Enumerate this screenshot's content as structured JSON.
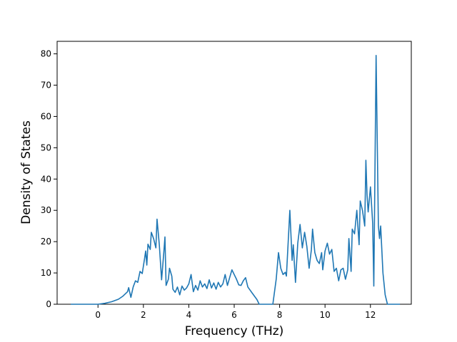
{
  "chart_data": {
    "type": "line",
    "xlabel": "Frequency (THz)",
    "ylabel": "Density of States",
    "xlim": [
      -1.8,
      13.8
    ],
    "ylim": [
      0,
      84
    ],
    "xticks": [
      0,
      2,
      4,
      6,
      8,
      10,
      12
    ],
    "yticks": [
      0,
      10,
      20,
      30,
      40,
      50,
      60,
      70,
      80
    ],
    "grid": false,
    "legend": "none",
    "series": [
      {
        "color": "#1f77b4",
        "points": [
          [
            -1.2,
            0
          ],
          [
            -0.5,
            0
          ],
          [
            0.0,
            0
          ],
          [
            0.3,
            0.3
          ],
          [
            0.6,
            0.8
          ],
          [
            0.9,
            1.6
          ],
          [
            1.1,
            2.6
          ],
          [
            1.3,
            4.0
          ],
          [
            1.35,
            5.3
          ],
          [
            1.45,
            2.2
          ],
          [
            1.55,
            5.5
          ],
          [
            1.65,
            7.5
          ],
          [
            1.75,
            7.0
          ],
          [
            1.85,
            10.5
          ],
          [
            1.95,
            9.8
          ],
          [
            2.05,
            14.5
          ],
          [
            2.1,
            17.0
          ],
          [
            2.15,
            12.5
          ],
          [
            2.2,
            19.2
          ],
          [
            2.3,
            17.5
          ],
          [
            2.35,
            23.0
          ],
          [
            2.45,
            21.0
          ],
          [
            2.55,
            18.0
          ],
          [
            2.6,
            27.2
          ],
          [
            2.7,
            19.0
          ],
          [
            2.8,
            7.8
          ],
          [
            2.9,
            16.5
          ],
          [
            2.95,
            21.5
          ],
          [
            3.0,
            6.0
          ],
          [
            3.1,
            8.0
          ],
          [
            3.15,
            11.5
          ],
          [
            3.25,
            9.0
          ],
          [
            3.3,
            4.8
          ],
          [
            3.4,
            3.8
          ],
          [
            3.5,
            5.5
          ],
          [
            3.6,
            3.0
          ],
          [
            3.7,
            5.8
          ],
          [
            3.8,
            4.5
          ],
          [
            3.9,
            5.2
          ],
          [
            4.0,
            6.5
          ],
          [
            4.1,
            9.5
          ],
          [
            4.2,
            4.0
          ],
          [
            4.3,
            6.0
          ],
          [
            4.4,
            4.5
          ],
          [
            4.5,
            7.5
          ],
          [
            4.6,
            5.5
          ],
          [
            4.7,
            6.5
          ],
          [
            4.8,
            5.0
          ],
          [
            4.9,
            7.8
          ],
          [
            5.0,
            5.2
          ],
          [
            5.1,
            6.8
          ],
          [
            5.2,
            4.8
          ],
          [
            5.3,
            7.0
          ],
          [
            5.4,
            5.5
          ],
          [
            5.5,
            6.5
          ],
          [
            5.6,
            9.5
          ],
          [
            5.7,
            6.0
          ],
          [
            5.8,
            8.5
          ],
          [
            5.9,
            11.0
          ],
          [
            6.0,
            9.5
          ],
          [
            6.1,
            8.0
          ],
          [
            6.2,
            6.2
          ],
          [
            6.3,
            6.0
          ],
          [
            6.4,
            7.5
          ],
          [
            6.5,
            8.5
          ],
          [
            6.6,
            5.5
          ],
          [
            6.8,
            3.5
          ],
          [
            7.0,
            1.5
          ],
          [
            7.1,
            0
          ],
          [
            7.5,
            0
          ],
          [
            7.7,
            0
          ],
          [
            7.85,
            8.0
          ],
          [
            7.95,
            16.5
          ],
          [
            8.05,
            11.5
          ],
          [
            8.15,
            9.5
          ],
          [
            8.25,
            10.2
          ],
          [
            8.3,
            9.0
          ],
          [
            8.45,
            30.0
          ],
          [
            8.55,
            14.0
          ],
          [
            8.6,
            19.0
          ],
          [
            8.7,
            7.0
          ],
          [
            8.8,
            19.5
          ],
          [
            8.9,
            25.5
          ],
          [
            9.0,
            18.0
          ],
          [
            9.1,
            23.0
          ],
          [
            9.2,
            18.5
          ],
          [
            9.3,
            11.5
          ],
          [
            9.4,
            17.5
          ],
          [
            9.45,
            24.0
          ],
          [
            9.55,
            16.5
          ],
          [
            9.65,
            14.0
          ],
          [
            9.75,
            13.0
          ],
          [
            9.85,
            16.5
          ],
          [
            9.9,
            11.0
          ],
          [
            10.0,
            17.0
          ],
          [
            10.1,
            19.5
          ],
          [
            10.2,
            16.0
          ],
          [
            10.3,
            17.5
          ],
          [
            10.4,
            10.5
          ],
          [
            10.5,
            11.5
          ],
          [
            10.6,
            7.5
          ],
          [
            10.7,
            11.0
          ],
          [
            10.8,
            11.5
          ],
          [
            10.9,
            8.0
          ],
          [
            11.0,
            11.0
          ],
          [
            11.05,
            21.0
          ],
          [
            11.15,
            10.5
          ],
          [
            11.2,
            24.0
          ],
          [
            11.3,
            22.5
          ],
          [
            11.4,
            30.0
          ],
          [
            11.5,
            19.0
          ],
          [
            11.55,
            33.0
          ],
          [
            11.65,
            30.0
          ],
          [
            11.75,
            25.0
          ],
          [
            11.8,
            46.0
          ],
          [
            11.85,
            35.0
          ],
          [
            11.9,
            29.5
          ],
          [
            12.0,
            37.5
          ],
          [
            12.1,
            26.0
          ],
          [
            12.15,
            5.8
          ],
          [
            12.25,
            79.5
          ],
          [
            12.35,
            25.0
          ],
          [
            12.4,
            21.0
          ],
          [
            12.45,
            25.0
          ],
          [
            12.55,
            10.0
          ],
          [
            12.65,
            3.0
          ],
          [
            12.75,
            0
          ],
          [
            13.2,
            0
          ],
          [
            13.3,
            0
          ]
        ]
      }
    ]
  }
}
